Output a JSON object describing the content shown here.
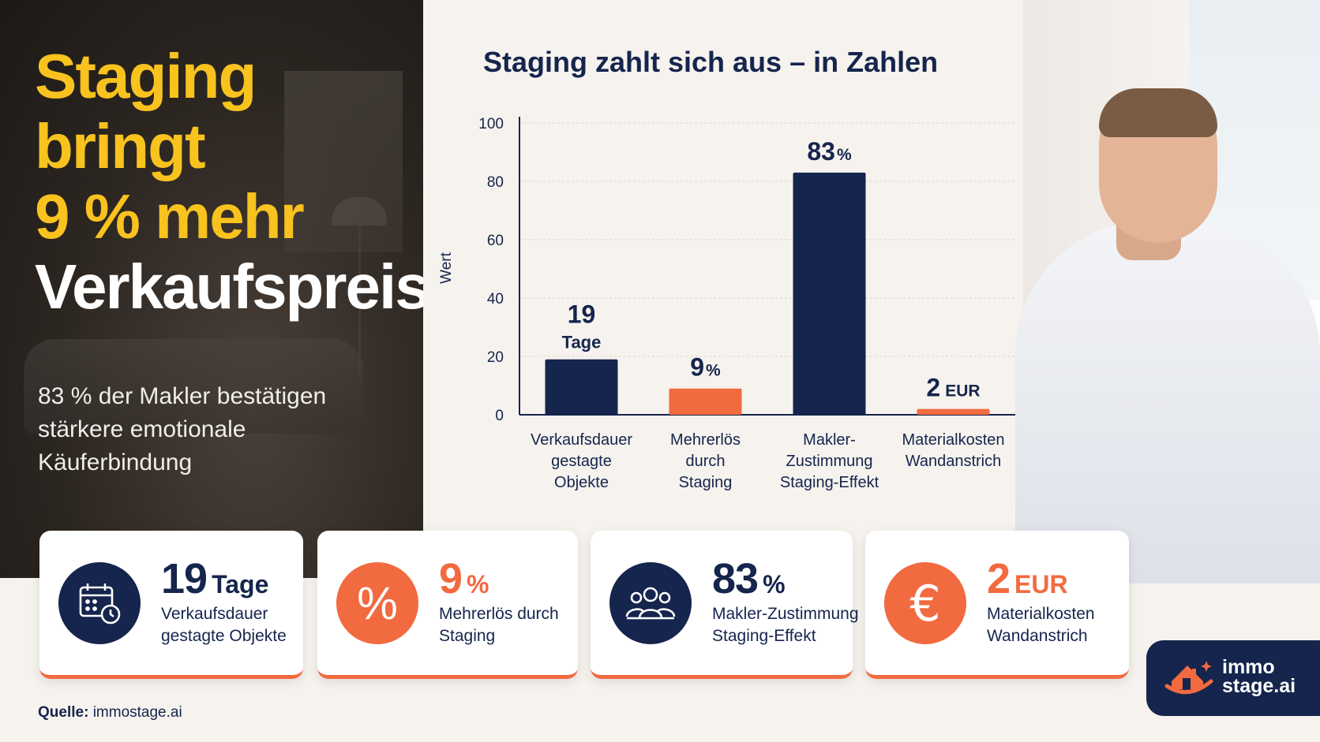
{
  "hero": {
    "line1": "Staging",
    "line2": "bringt",
    "line3": "9 % mehr",
    "line4": "Verkaufspreis",
    "subtitle": "83 % der Makler bestätigen stärkere emotionale Käuferbindung"
  },
  "chart_data": {
    "type": "bar",
    "title": "Staging zahlt sich aus – in Zahlen",
    "ylabel": "Wert",
    "xlabel": "",
    "ylim": [
      0,
      100
    ],
    "yticks": [
      0,
      20,
      40,
      60,
      80,
      100
    ],
    "grid": true,
    "categories": [
      [
        "Verkaufsdauer",
        "gestagte",
        "Objekte"
      ],
      [
        "Mehrerlös",
        "durch",
        "Staging"
      ],
      [
        "Makler-",
        "Zustimmung",
        "Staging-Effekt"
      ],
      [
        "Materialkosten",
        "Wandanstrich"
      ]
    ],
    "values": [
      19,
      9,
      83,
      2
    ],
    "bar_colors": [
      "#15254d",
      "#f26a3f",
      "#15254d",
      "#f26a3f"
    ],
    "data_labels": [
      {
        "value": "19",
        "unit": "Tage"
      },
      {
        "value": "9",
        "unit": "%"
      },
      {
        "value": "83",
        "unit": "%"
      },
      {
        "value": "2",
        "unit": "EUR"
      }
    ]
  },
  "cards": [
    {
      "value": "19",
      "unit": "Tage",
      "desc": "Verkaufsdauer gestagte Objekte",
      "icon": "calendar-clock-icon",
      "color": "navy"
    },
    {
      "value": "9",
      "unit": "%",
      "desc": "Mehrerlös durch Staging",
      "icon": "percent-icon",
      "color": "orange"
    },
    {
      "value": "83",
      "unit": "%",
      "desc": "Makler-Zustimmung Staging-Effekt",
      "icon": "people-group-icon",
      "color": "navy"
    },
    {
      "value": "2",
      "unit": "EUR",
      "desc": "Materialkosten Wandanstrich",
      "icon": "euro-icon",
      "color": "orange"
    }
  ],
  "source": {
    "label": "Quelle:",
    "value": "immostage.ai"
  },
  "logo": {
    "line1": "immo",
    "line2": "stage.ai"
  },
  "colors": {
    "navy": "#15254d",
    "orange": "#f26a3f",
    "yellow": "#f8c21f"
  }
}
